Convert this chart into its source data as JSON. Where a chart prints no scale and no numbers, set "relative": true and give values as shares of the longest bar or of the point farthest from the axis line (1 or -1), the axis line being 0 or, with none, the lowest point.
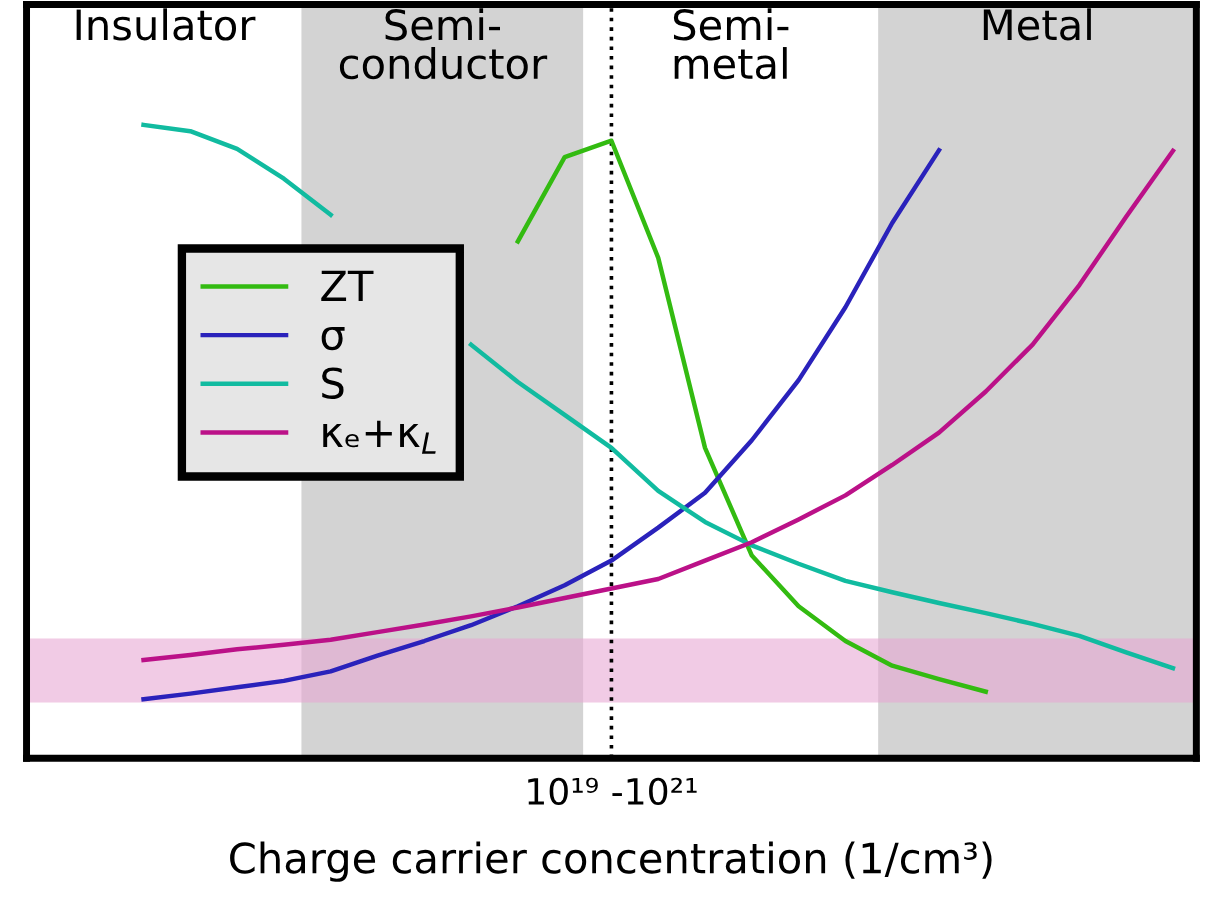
{
  "chart_data": {
    "type": "line",
    "relative": true,
    "xlabel": "Charge carrier concentration (1/cm³)",
    "legend": "left",
    "marker": "none",
    "line_style": "solid",
    "categories": [
      null,
      null,
      null,
      null,
      null,
      null,
      null,
      null,
      null,
      null,
      null,
      null,
      null,
      null,
      null,
      null,
      null,
      null,
      null,
      null,
      null,
      null,
      null,
      null,
      null
    ],
    "series": [
      {
        "name": "ZT",
        "color": "#33bb11",
        "values": [
          null,
          null,
          null,
          null,
          null,
          null,
          null,
          null,
          null,
          null,
          0.816,
          0.949,
          0.975,
          0.79,
          0.49,
          0.32,
          0.24,
          0.185,
          0.146,
          0.125,
          0.105,
          null,
          null,
          null,
          null
        ]
      },
      {
        "name": "σ",
        "color": "#2a22bb",
        "values": [
          null,
          null,
          0.093,
          0.102,
          0.112,
          0.122,
          0.137,
          0.162,
          0.185,
          0.21,
          0.24,
          0.273,
          0.312,
          0.364,
          0.419,
          0.502,
          0.597,
          0.712,
          0.845,
          0.96,
          null,
          null,
          null,
          null,
          null
        ]
      },
      {
        "name": "S",
        "color": "#11bba0",
        "values": [
          null,
          null,
          1.0,
          0.99,
          0.962,
          0.915,
          0.858,
          null,
          null,
          0.653,
          0.594,
          0.542,
          0.49,
          0.422,
          0.373,
          0.336,
          0.307,
          0.28,
          0.262,
          0.245,
          0.229,
          0.212,
          0.193,
          0.167,
          0.142
        ]
      },
      {
        "name": "κₑ+κ$_{L}$",
        "color": "#bb1188",
        "values": [
          null,
          null,
          0.155,
          0.163,
          0.172,
          0.179,
          0.187,
          0.199,
          0.211,
          0.224,
          0.238,
          0.253,
          0.268,
          0.283,
          0.312,
          0.341,
          0.377,
          0.415,
          0.463,
          0.514,
          0.579,
          0.653,
          0.747,
          0.855,
          0.959
        ]
      }
    ],
    "bands": [
      {
        "axis": "y",
        "from": 0.088,
        "to": 0.189,
        "color": "#e8a8d4"
      }
    ],
    "annotations": [
      "Insulator",
      "Semi-\nconductor",
      "Semi-\nmetal",
      "Metal",
      "10¹⁹ -10²¹"
    ]
  }
}
